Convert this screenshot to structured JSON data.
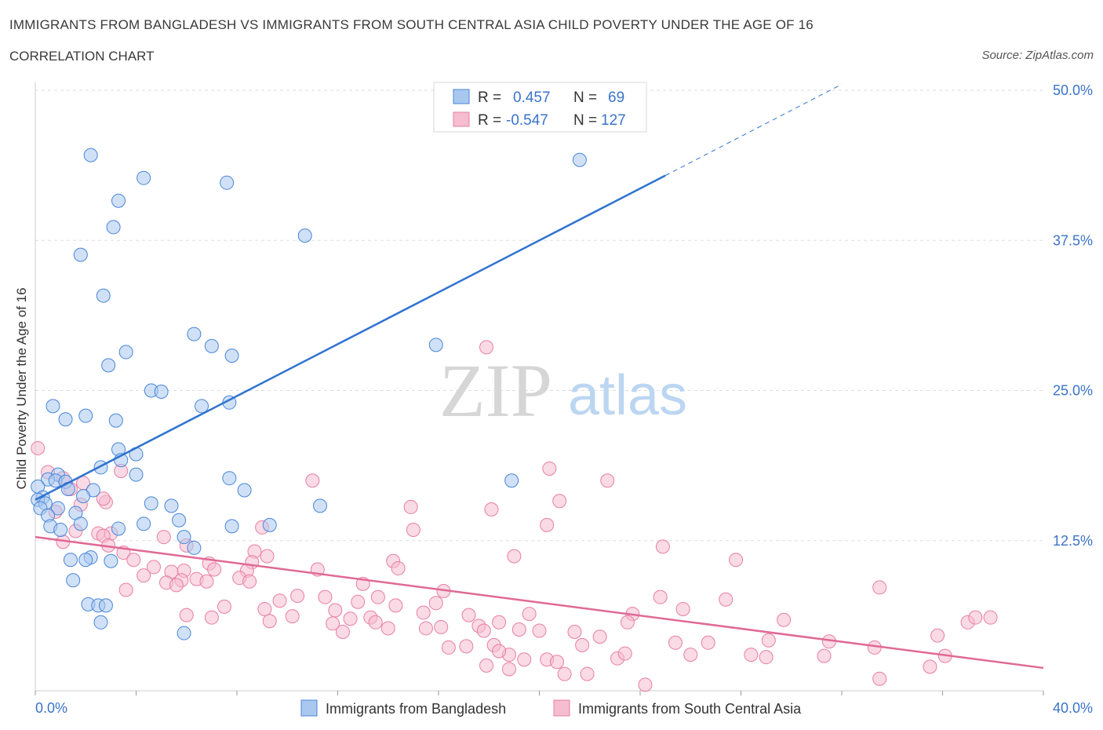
{
  "header": {
    "title": "IMMIGRANTS FROM BANGLADESH VS IMMIGRANTS FROM SOUTH CENTRAL ASIA CHILD POVERTY UNDER THE AGE OF 16",
    "subtitle": "CORRELATION CHART",
    "source": "Source: ZipAtlas.com"
  },
  "watermark": {
    "zip": "ZIP",
    "atlas": "atlas"
  },
  "colors": {
    "blue": "#4a86d8",
    "blue_fill": "#a9c8f0",
    "blue_line": "#2f73d0",
    "pink": "#e87fa3",
    "pink_fill": "#f6bcd0",
    "pink_line": "#e06a95",
    "axis_label": "#3a73c9",
    "grid": "#dddddd"
  },
  "stats": {
    "rows": [
      {
        "r_label": "R =",
        "r_value": "0.457",
        "n_label": "N =",
        "n_value": "69"
      },
      {
        "r_label": "R =",
        "r_value": "-0.547",
        "n_label": "N =",
        "n_value": "127"
      }
    ]
  },
  "chart_data": {
    "type": "scatter",
    "xlabel": "",
    "ylabel": "Child Poverty Under the Age of 16",
    "xlim": [
      0,
      40
    ],
    "ylim": [
      0,
      50
    ],
    "x_tick_labels": [
      "0.0%",
      "40.0%"
    ],
    "y_ticks": [
      12.5,
      25.0,
      37.5,
      50.0
    ],
    "y_tick_labels": [
      "12.5%",
      "25.0%",
      "37.5%",
      "50.0%"
    ],
    "grid": true,
    "legend": "bottom-center",
    "series": [
      {
        "name": "Immigrants from Bangladesh",
        "trend": {
          "x0": 0,
          "y0": 15.9,
          "x1": 25,
          "y1": 42.9,
          "dash_x1": 32,
          "dash_y1": 50.5
        },
        "points": [
          [
            2.2,
            44.6
          ],
          [
            21.6,
            44.2
          ],
          [
            4.3,
            42.7
          ],
          [
            7.6,
            42.3
          ],
          [
            3.3,
            40.8
          ],
          [
            3.1,
            38.6
          ],
          [
            10.7,
            37.9
          ],
          [
            1.8,
            36.3
          ],
          [
            2.7,
            32.9
          ],
          [
            6.3,
            29.7
          ],
          [
            7.0,
            28.7
          ],
          [
            15.9,
            28.8
          ],
          [
            7.8,
            27.9
          ],
          [
            3.6,
            28.2
          ],
          [
            2.9,
            27.1
          ],
          [
            4.6,
            25.0
          ],
          [
            5.0,
            24.9
          ],
          [
            0.7,
            23.7
          ],
          [
            6.6,
            23.7
          ],
          [
            7.7,
            24.0
          ],
          [
            2.0,
            22.9
          ],
          [
            1.2,
            22.6
          ],
          [
            3.2,
            22.5
          ],
          [
            3.3,
            20.1
          ],
          [
            4.0,
            19.7
          ],
          [
            3.4,
            19.2
          ],
          [
            2.6,
            18.6
          ],
          [
            0.9,
            18.0
          ],
          [
            4.0,
            18.0
          ],
          [
            7.7,
            17.7
          ],
          [
            18.9,
            17.5
          ],
          [
            0.5,
            17.6
          ],
          [
            0.8,
            17.5
          ],
          [
            1.2,
            17.4
          ],
          [
            0.1,
            17.0
          ],
          [
            1.3,
            16.8
          ],
          [
            2.3,
            16.7
          ],
          [
            8.3,
            16.7
          ],
          [
            1.9,
            16.2
          ],
          [
            0.3,
            16.1
          ],
          [
            0.1,
            15.9
          ],
          [
            0.4,
            15.6
          ],
          [
            4.6,
            15.6
          ],
          [
            5.4,
            15.4
          ],
          [
            0.2,
            15.2
          ],
          [
            11.3,
            15.4
          ],
          [
            0.9,
            15.2
          ],
          [
            1.6,
            14.8
          ],
          [
            0.5,
            14.6
          ],
          [
            5.7,
            14.2
          ],
          [
            0.6,
            13.7
          ],
          [
            1.8,
            13.9
          ],
          [
            4.3,
            13.9
          ],
          [
            7.8,
            13.7
          ],
          [
            9.3,
            13.8
          ],
          [
            1.0,
            13.4
          ],
          [
            3.3,
            13.5
          ],
          [
            5.9,
            12.8
          ],
          [
            6.3,
            11.9
          ],
          [
            2.2,
            11.1
          ],
          [
            1.4,
            10.9
          ],
          [
            2.0,
            10.9
          ],
          [
            3.0,
            10.8
          ],
          [
            1.5,
            9.2
          ],
          [
            2.1,
            7.2
          ],
          [
            2.5,
            7.1
          ],
          [
            2.8,
            7.1
          ],
          [
            2.6,
            5.7
          ],
          [
            5.9,
            4.8
          ]
        ]
      },
      {
        "name": "Immigrants from South Central Asia",
        "trend": {
          "x0": 0,
          "y0": 12.8,
          "x1": 40,
          "y1": 1.9
        },
        "points": [
          [
            17.9,
            28.6
          ],
          [
            20.4,
            18.5
          ],
          [
            0.1,
            20.2
          ],
          [
            0.5,
            18.2
          ],
          [
            3.4,
            18.3
          ],
          [
            1.1,
            17.7
          ],
          [
            11.0,
            17.5
          ],
          [
            22.7,
            17.5
          ],
          [
            1.9,
            17.3
          ],
          [
            1.4,
            16.8
          ],
          [
            2.8,
            15.7
          ],
          [
            20.8,
            15.8
          ],
          [
            2.7,
            16.0
          ],
          [
            1.8,
            15.5
          ],
          [
            14.9,
            15.3
          ],
          [
            18.1,
            15.1
          ],
          [
            0.8,
            14.9
          ],
          [
            9.0,
            13.6
          ],
          [
            15.0,
            13.4
          ],
          [
            20.3,
            13.8
          ],
          [
            1.6,
            13.3
          ],
          [
            3.0,
            13.1
          ],
          [
            2.5,
            13.1
          ],
          [
            2.7,
            12.9
          ],
          [
            5.1,
            12.8
          ],
          [
            1.1,
            12.4
          ],
          [
            2.9,
            12.1
          ],
          [
            3.5,
            11.5
          ],
          [
            6.0,
            12.1
          ],
          [
            8.7,
            11.6
          ],
          [
            9.2,
            11.2
          ],
          [
            24.9,
            12.0
          ],
          [
            19.0,
            11.2
          ],
          [
            14.2,
            10.8
          ],
          [
            3.9,
            10.9
          ],
          [
            6.9,
            10.6
          ],
          [
            8.6,
            10.7
          ],
          [
            8.4,
            10.0
          ],
          [
            4.7,
            10.3
          ],
          [
            5.9,
            10.0
          ],
          [
            7.1,
            10.1
          ],
          [
            5.4,
            9.9
          ],
          [
            11.2,
            10.1
          ],
          [
            14.4,
            10.2
          ],
          [
            27.8,
            10.9
          ],
          [
            4.3,
            9.6
          ],
          [
            8.1,
            9.4
          ],
          [
            6.4,
            9.3
          ],
          [
            8.5,
            9.1
          ],
          [
            6.8,
            9.1
          ],
          [
            5.8,
            9.2
          ],
          [
            5.2,
            9.0
          ],
          [
            5.6,
            8.8
          ],
          [
            13.0,
            8.9
          ],
          [
            3.6,
            8.4
          ],
          [
            16.2,
            8.3
          ],
          [
            10.4,
            7.9
          ],
          [
            11.5,
            7.8
          ],
          [
            13.6,
            7.8
          ],
          [
            24.8,
            7.8
          ],
          [
            27.4,
            7.6
          ],
          [
            9.7,
            7.5
          ],
          [
            12.8,
            7.4
          ],
          [
            7.5,
            7.0
          ],
          [
            9.1,
            6.8
          ],
          [
            14.3,
            7.1
          ],
          [
            15.9,
            7.3
          ],
          [
            11.9,
            6.7
          ],
          [
            15.4,
            6.5
          ],
          [
            25.7,
            6.8
          ],
          [
            33.5,
            8.6
          ],
          [
            6.0,
            6.3
          ],
          [
            7.0,
            6.1
          ],
          [
            10.2,
            6.2
          ],
          [
            12.5,
            6.0
          ],
          [
            13.3,
            6.1
          ],
          [
            17.2,
            6.3
          ],
          [
            19.6,
            6.4
          ],
          [
            23.7,
            6.4
          ],
          [
            29.7,
            5.9
          ],
          [
            37.9,
            6.1
          ],
          [
            9.3,
            5.8
          ],
          [
            11.8,
            5.6
          ],
          [
            13.5,
            5.7
          ],
          [
            16.1,
            5.3
          ],
          [
            17.6,
            5.4
          ],
          [
            18.4,
            5.7
          ],
          [
            23.5,
            5.7
          ],
          [
            14.0,
            5.2
          ],
          [
            12.2,
            4.9
          ],
          [
            15.5,
            5.2
          ],
          [
            17.8,
            5.0
          ],
          [
            19.2,
            5.1
          ],
          [
            20.0,
            5.0
          ],
          [
            21.4,
            4.9
          ],
          [
            22.4,
            4.5
          ],
          [
            26.7,
            4.0
          ],
          [
            29.1,
            4.2
          ],
          [
            31.5,
            4.1
          ],
          [
            35.8,
            4.6
          ],
          [
            37.0,
            5.7
          ],
          [
            17.1,
            3.7
          ],
          [
            18.2,
            3.8
          ],
          [
            21.7,
            3.8
          ],
          [
            25.4,
            4.0
          ],
          [
            28.4,
            3.0
          ],
          [
            33.3,
            3.6
          ],
          [
            37.3,
            6.1
          ],
          [
            16.4,
            3.6
          ],
          [
            18.8,
            3.0
          ],
          [
            20.3,
            2.6
          ],
          [
            20.7,
            2.4
          ],
          [
            23.1,
            2.7
          ],
          [
            19.4,
            2.6
          ],
          [
            26.0,
            3.0
          ],
          [
            29.0,
            2.8
          ],
          [
            31.3,
            2.9
          ],
          [
            36.1,
            2.9
          ],
          [
            17.9,
            2.1
          ],
          [
            18.4,
            3.3
          ],
          [
            21.0,
            1.4
          ],
          [
            21.9,
            1.4
          ],
          [
            18.8,
            1.8
          ],
          [
            24.2,
            0.5
          ],
          [
            35.5,
            2.0
          ],
          [
            33.5,
            1.0
          ],
          [
            23.4,
            3.1
          ]
        ]
      }
    ]
  }
}
